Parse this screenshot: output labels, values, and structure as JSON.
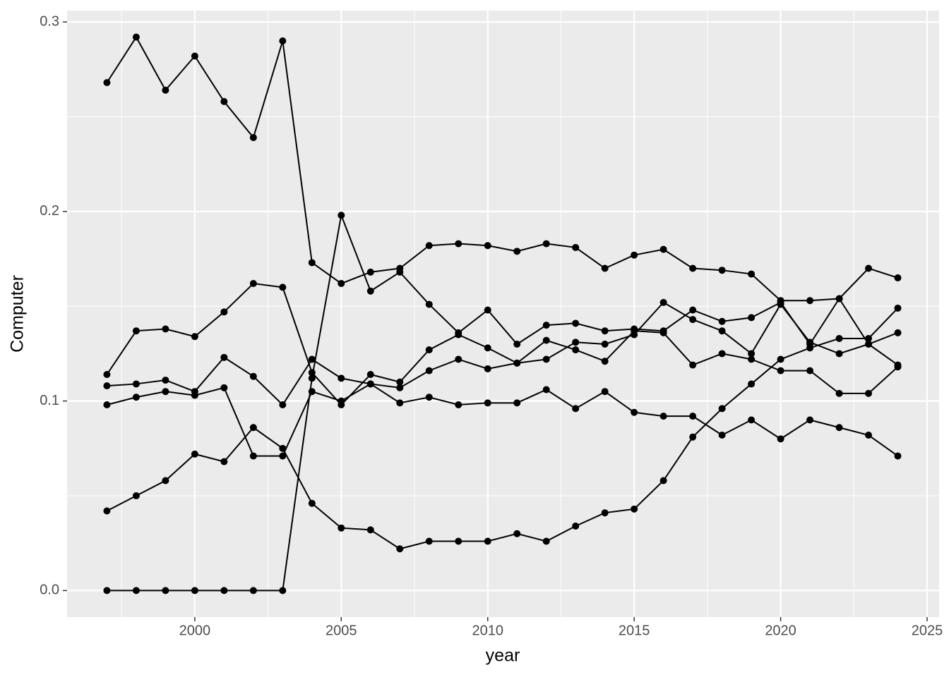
{
  "chart_data": {
    "type": "line",
    "x_label": "year",
    "y_label": "Computer",
    "x": [
      1997,
      1998,
      1999,
      2000,
      2001,
      2002,
      2003,
      2004,
      2005,
      2006,
      2007,
      2008,
      2009,
      2010,
      2011,
      2012,
      2013,
      2014,
      2015,
      2016,
      2017,
      2018,
      2019,
      2020,
      2021,
      2022,
      2023,
      2024
    ],
    "series": [
      {
        "color": "#000000",
        "values": [
          0.268,
          0.292,
          0.264,
          0.282,
          0.258,
          0.239,
          0.29,
          0.173,
          0.162,
          0.168,
          0.17,
          0.182,
          0.183,
          0.182,
          0.179,
          0.183,
          0.181,
          0.17,
          0.177,
          0.18,
          0.17,
          0.169,
          0.167,
          0.153,
          0.153,
          0.154,
          0.17,
          0.165
        ]
      },
      {
        "color": "#000000",
        "values": [
          0,
          0,
          0,
          0,
          0,
          0,
          0,
          0.112,
          0.198,
          0.158,
          0.168,
          0.151,
          0.136,
          0.148,
          0.13,
          0.14,
          0.141,
          0.137,
          0.138,
          0.137,
          0.148,
          0.142,
          0.144,
          0.152,
          0.13,
          0.154,
          0.13,
          0.119
        ]
      },
      {
        "color": "#000000",
        "values": [
          0.114,
          0.137,
          0.138,
          0.134,
          0.147,
          0.162,
          0.16,
          0.115,
          0.098,
          0.114,
          0.11,
          0.127,
          0.135,
          0.128,
          0.12,
          0.132,
          0.127,
          0.121,
          0.137,
          0.136,
          0.119,
          0.125,
          0.122,
          0.116,
          0.116,
          0.104,
          0.104,
          0.118
        ]
      },
      {
        "color": "#000000",
        "values": [
          0.108,
          0.109,
          0.111,
          0.105,
          0.123,
          0.113,
          0.098,
          0.122,
          0.112,
          0.109,
          0.107,
          0.116,
          0.122,
          0.117,
          0.12,
          0.122,
          0.131,
          0.13,
          0.135,
          0.152,
          0.143,
          0.137,
          0.125,
          0.151,
          0.131,
          0.125,
          0.13,
          0.136
        ]
      },
      {
        "color": "#000000",
        "values": [
          0.042,
          0.05,
          0.058,
          0.072,
          0.068,
          0.086,
          0.075,
          0.046,
          0.033,
          0.032,
          0.022,
          0.026,
          0.026,
          0.026,
          0.03,
          0.026,
          0.034,
          0.041,
          0.043,
          0.058,
          0.081,
          0.096,
          0.109,
          0.122,
          0.128,
          0.133,
          0.133,
          0.149
        ]
      },
      {
        "color": "#000000",
        "values": [
          0.098,
          0.102,
          0.105,
          0.103,
          0.107,
          0.071,
          0.071,
          0.105,
          0.1,
          0.109,
          0.099,
          0.102,
          0.098,
          0.099,
          0.099,
          0.106,
          0.096,
          0.105,
          0.094,
          0.092,
          0.092,
          0.082,
          0.09,
          0.08,
          0.09,
          0.086,
          0.082,
          0.071
        ]
      }
    ],
    "xlim": [
      1995.64,
      2025.41
    ],
    "xticks": [
      2000,
      2005,
      2010,
      2015,
      2020,
      2025
    ],
    "x_minor_ticks": [
      1997.5,
      2002.5,
      2007.5,
      2012.5,
      2017.5,
      2022.5
    ],
    "ylim": [
      -0.014,
      0.306
    ],
    "yticks": [
      {
        "value": 0,
        "label": "0.0"
      },
      0.1,
      0.2,
      0.3
    ],
    "y_minor_ticks": [
      0.05,
      0.15,
      0.25
    ],
    "grid": true
  }
}
